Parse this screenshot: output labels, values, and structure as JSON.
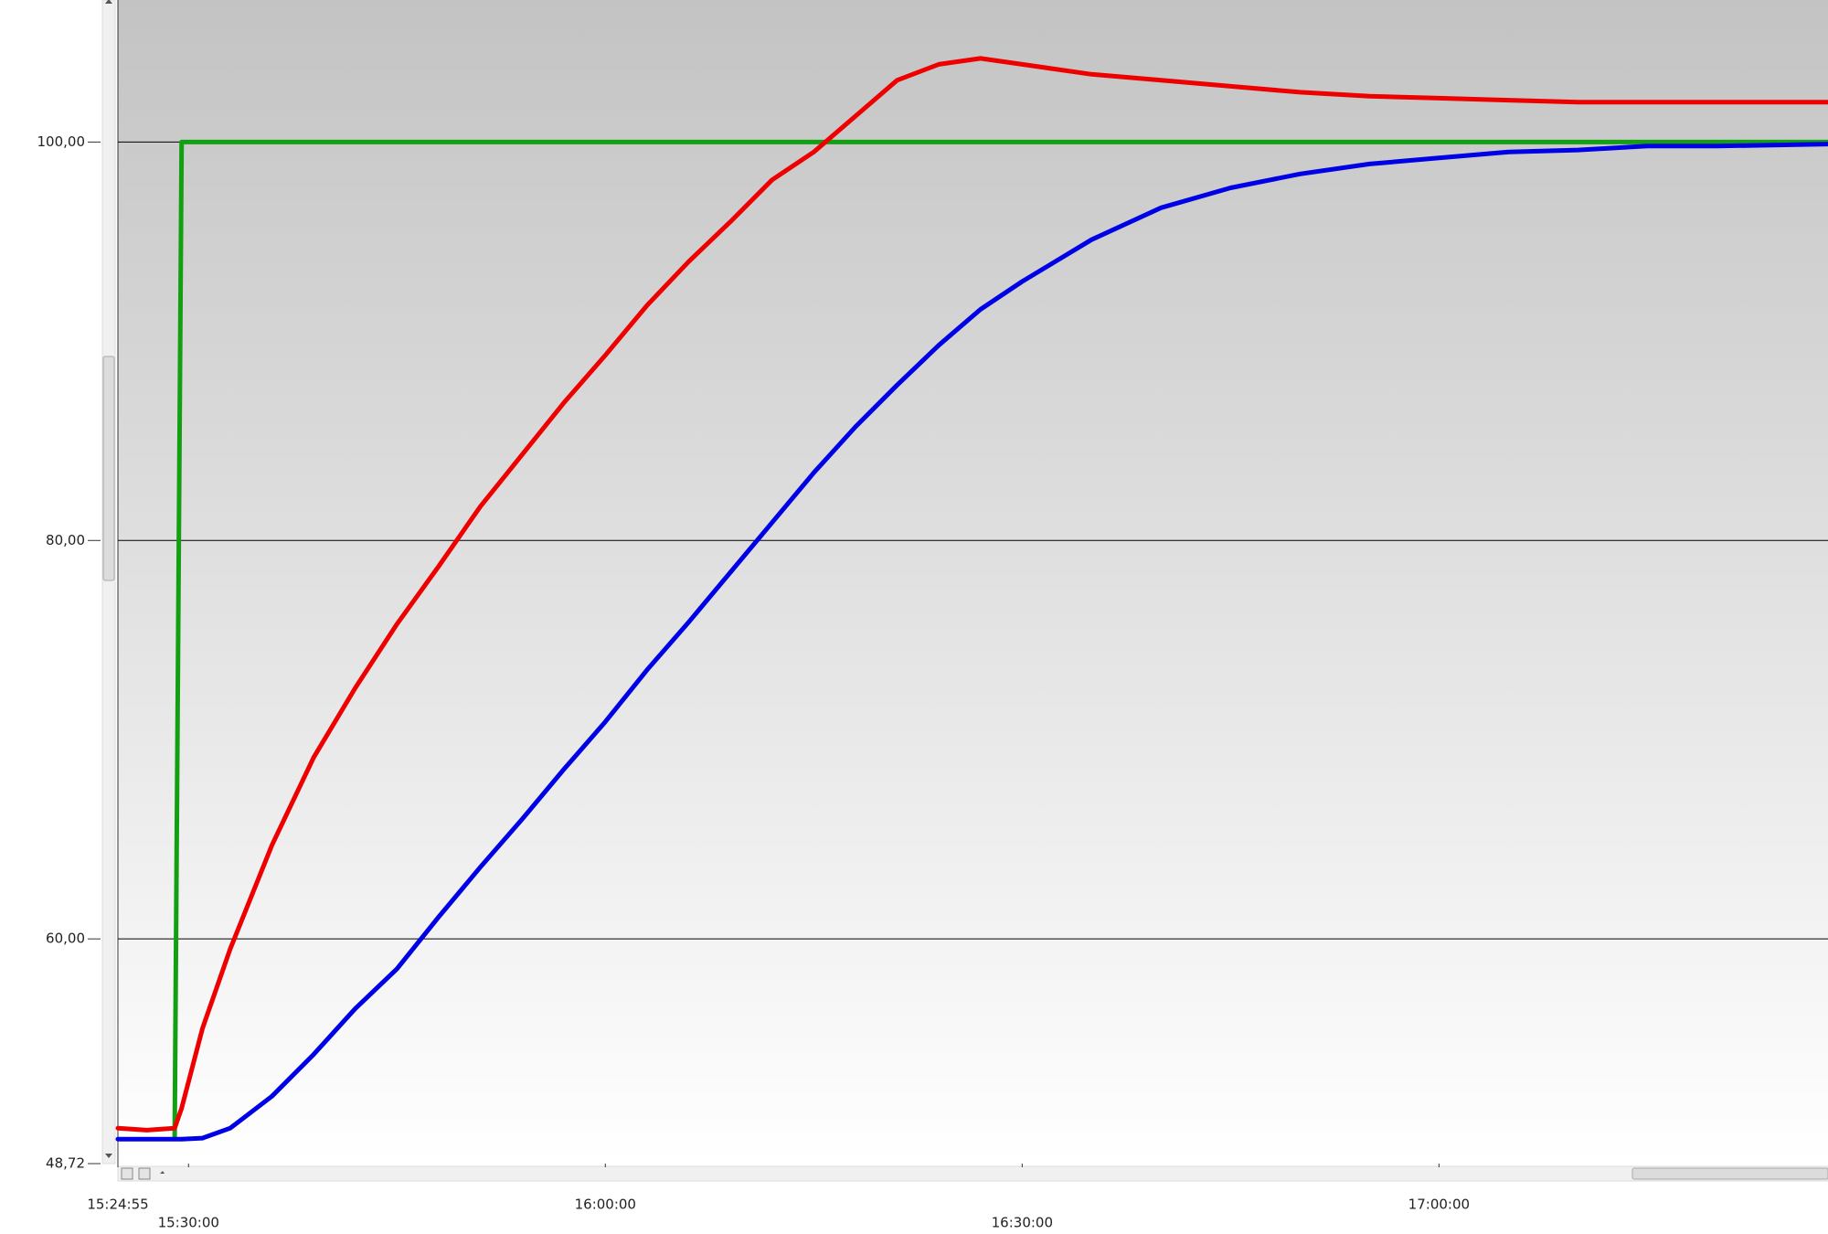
{
  "chart_data": {
    "type": "line",
    "x": [
      "15:24:55",
      "15:27:00",
      "15:29:00",
      "15:29:30",
      "15:31:00",
      "15:33:00",
      "15:36:00",
      "15:39:00",
      "15:42:00",
      "15:45:00",
      "15:48:00",
      "15:51:00",
      "15:54:00",
      "15:57:00",
      "16:00:00",
      "16:03:00",
      "16:06:00",
      "16:09:00",
      "16:12:00",
      "16:15:00",
      "16:18:00",
      "16:21:00",
      "16:24:00",
      "16:27:00",
      "16:30:00",
      "16:35:00",
      "16:40:00",
      "16:45:00",
      "16:50:00",
      "16:55:00",
      "17:00:00",
      "17:05:00",
      "17:10:00",
      "17:15:00",
      "17:20:00",
      "17:28:00"
    ],
    "series": [
      {
        "color": "#12a012",
        "values": [
          null,
          null,
          50.1,
          100,
          100,
          100,
          100,
          100,
          100,
          100,
          100,
          100,
          100,
          100,
          100,
          100,
          100,
          100,
          100,
          100,
          100,
          100,
          100,
          100,
          100,
          100,
          100,
          100,
          100,
          100,
          100,
          100,
          100,
          100,
          100,
          100
        ]
      },
      {
        "color": "#0000e6",
        "values": [
          49.95,
          49.95,
          49.95,
          49.95,
          50.0,
          50.5,
          52.1,
          54.2,
          56.5,
          58.5,
          61.1,
          63.6,
          66.0,
          68.5,
          70.9,
          73.5,
          75.9,
          78.4,
          80.9,
          83.4,
          85.7,
          87.8,
          89.8,
          91.6,
          93.0,
          95.1,
          96.7,
          97.7,
          98.4,
          98.9,
          99.2,
          99.5,
          99.6,
          99.8,
          99.8,
          99.9
        ]
      },
      {
        "color": "#ee0000",
        "values": [
          50.5,
          50.4,
          50.5,
          51.5,
          55.5,
          59.5,
          64.7,
          69.1,
          72.6,
          75.8,
          78.7,
          81.7,
          84.3,
          86.9,
          89.3,
          91.8,
          94.0,
          96.0,
          98.1,
          99.5,
          101.3,
          103.1,
          103.9,
          104.2,
          103.9,
          103.4,
          103.1,
          102.8,
          102.5,
          102.3,
          102.2,
          102.1,
          102.0,
          102.0,
          102.0,
          102.0
        ]
      }
    ],
    "xlim": [
      "15:24:55",
      "17:28:00"
    ],
    "xticks": [
      "15:24:55",
      "15:30:00",
      "16:00:00",
      "16:30:00",
      "17:00:00"
    ],
    "ylim": [
      48.72,
      107.13
    ],
    "yticks": [
      {
        "value": 48.72,
        "label": "48,72"
      },
      {
        "value": 60,
        "label": "60,00"
      },
      {
        "value": 80,
        "label": "80,00"
      },
      {
        "value": 100,
        "label": "100,00"
      }
    ],
    "grid": true
  }
}
